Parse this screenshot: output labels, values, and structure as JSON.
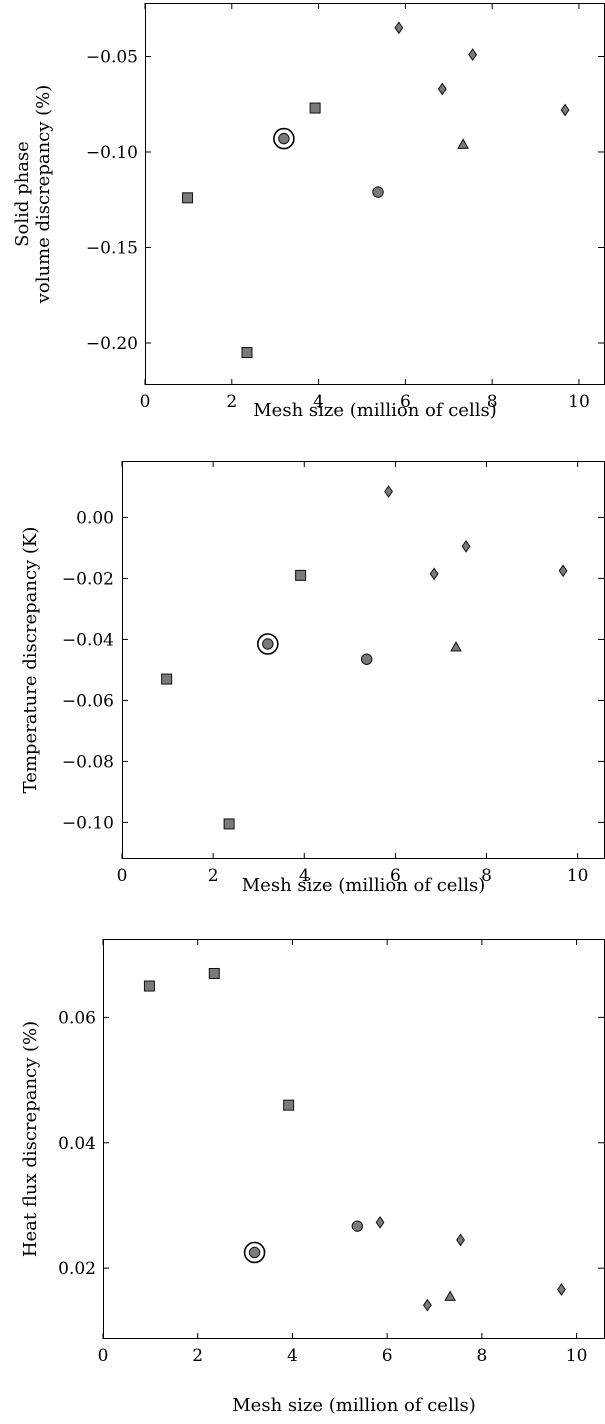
{
  "chart_data": [
    {
      "type": "scatter",
      "xlabel": "Mesh size (million of cells)",
      "ylabel_lines": [
        "Solid phase",
        "volume discrepancy (%)"
      ],
      "xlim": [
        0,
        10.6
      ],
      "ylim": [
        -0.222,
        -0.022
      ],
      "xticks": [
        0,
        2,
        4,
        6,
        8,
        10
      ],
      "xtick_labels": [
        "0",
        "2",
        "4",
        "6",
        "8",
        "10"
      ],
      "yticks": [
        -0.05,
        -0.1,
        -0.15,
        -0.2
      ],
      "ytick_labels": [
        "−0.05",
        "−0.10",
        "−0.15",
        "−0.20"
      ],
      "grid": false,
      "points": [
        {
          "x": 0.98,
          "y": -0.124,
          "marker": "square"
        },
        {
          "x": 2.35,
          "y": -0.205,
          "marker": "square"
        },
        {
          "x": 3.92,
          "y": -0.077,
          "marker": "square"
        },
        {
          "x": 3.2,
          "y": -0.093,
          "marker": "circle",
          "highlight": true
        },
        {
          "x": 5.37,
          "y": -0.121,
          "marker": "circle"
        },
        {
          "x": 7.33,
          "y": -0.096,
          "marker": "triangle"
        },
        {
          "x": 5.85,
          "y": -0.035,
          "marker": "diamond"
        },
        {
          "x": 6.85,
          "y": -0.067,
          "marker": "diamond"
        },
        {
          "x": 7.55,
          "y": -0.049,
          "marker": "diamond"
        },
        {
          "x": 9.68,
          "y": -0.078,
          "marker": "diamond"
        }
      ]
    },
    {
      "type": "scatter",
      "xlabel": "Mesh size (million of cells)",
      "ylabel_lines": [
        "Temperature discrepancy (K)"
      ],
      "xlim": [
        0,
        10.6
      ],
      "ylim": [
        -0.112,
        0.0185
      ],
      "xticks": [
        0,
        2,
        4,
        6,
        8,
        10
      ],
      "xtick_labels": [
        "0",
        "2",
        "4",
        "6",
        "8",
        "10"
      ],
      "yticks": [
        0.0,
        -0.02,
        -0.04,
        -0.06,
        -0.08,
        -0.1
      ],
      "ytick_labels": [
        "0.00",
        "−0.02",
        "−0.04",
        "−0.06",
        "−0.08",
        "−0.10"
      ],
      "grid": false,
      "points": [
        {
          "x": 0.98,
          "y": -0.053,
          "marker": "square"
        },
        {
          "x": 2.35,
          "y": -0.1005,
          "marker": "square"
        },
        {
          "x": 3.92,
          "y": -0.019,
          "marker": "square"
        },
        {
          "x": 3.2,
          "y": -0.0415,
          "marker": "circle",
          "highlight": true
        },
        {
          "x": 5.37,
          "y": -0.0465,
          "marker": "circle"
        },
        {
          "x": 7.33,
          "y": -0.0425,
          "marker": "triangle"
        },
        {
          "x": 5.85,
          "y": 0.0085,
          "marker": "diamond"
        },
        {
          "x": 6.85,
          "y": -0.0185,
          "marker": "diamond"
        },
        {
          "x": 7.55,
          "y": -0.0095,
          "marker": "diamond"
        },
        {
          "x": 9.68,
          "y": -0.0175,
          "marker": "diamond"
        }
      ]
    },
    {
      "type": "scatter",
      "xlabel": "Mesh size (million of cells)",
      "ylabel_lines": [
        "Heat flux discrepancy (%)"
      ],
      "xlim": [
        0,
        10.6
      ],
      "ylim": [
        0.0087,
        0.0725
      ],
      "xticks": [
        0,
        2,
        4,
        6,
        8,
        10
      ],
      "xtick_labels": [
        "0",
        "2",
        "4",
        "6",
        "8",
        "10"
      ],
      "yticks": [
        0.06,
        0.04,
        0.02
      ],
      "ytick_labels": [
        "0.06",
        "0.04",
        "0.02"
      ],
      "grid": false,
      "points": [
        {
          "x": 0.98,
          "y": 0.065,
          "marker": "square"
        },
        {
          "x": 2.35,
          "y": 0.067,
          "marker": "square"
        },
        {
          "x": 3.92,
          "y": 0.046,
          "marker": "square"
        },
        {
          "x": 3.2,
          "y": 0.0225,
          "marker": "circle",
          "highlight": true
        },
        {
          "x": 5.37,
          "y": 0.0267,
          "marker": "circle"
        },
        {
          "x": 7.33,
          "y": 0.0155,
          "marker": "triangle"
        },
        {
          "x": 5.85,
          "y": 0.0273,
          "marker": "diamond"
        },
        {
          "x": 6.85,
          "y": 0.0141,
          "marker": "diamond"
        },
        {
          "x": 7.55,
          "y": 0.0245,
          "marker": "diamond"
        },
        {
          "x": 9.68,
          "y": 0.0166,
          "marker": "diamond"
        }
      ]
    }
  ]
}
